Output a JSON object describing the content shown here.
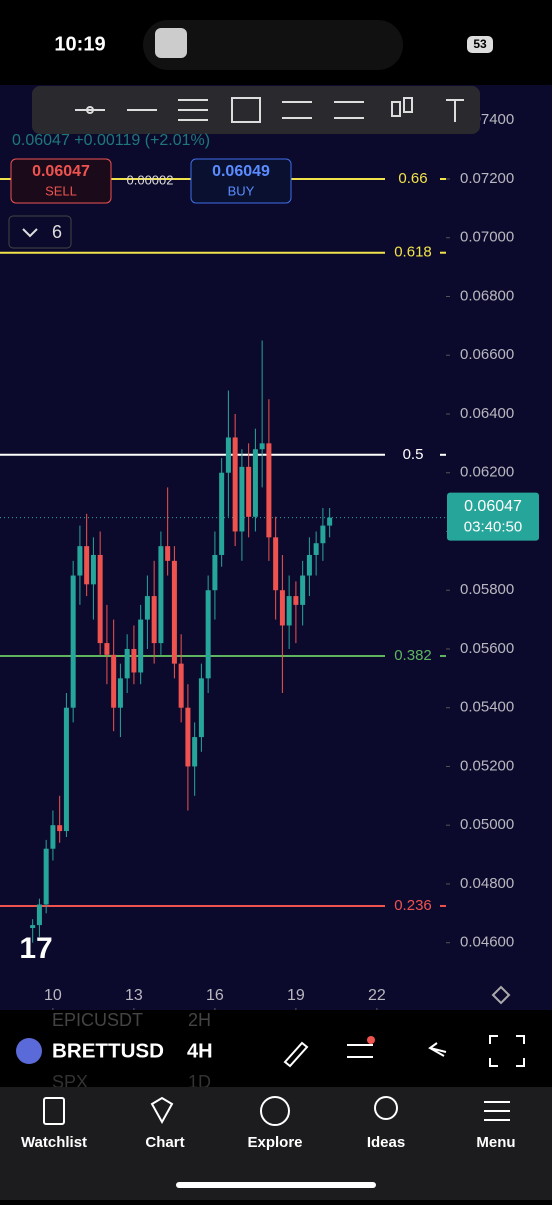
{
  "status_bar": {
    "time": "10:19",
    "battery": "53"
  },
  "quote": {
    "change_line": "0.06047 +0.00119 (+2.01%)",
    "sell_price": "0.06047",
    "sell_label": "SELL",
    "spread": "0.00002",
    "buy_price": "0.06049",
    "buy_label": "BUY",
    "indicator_count": "6"
  },
  "chart_data": {
    "type": "candlestick",
    "up_color": "#26a69a",
    "down_color": "#ef5350",
    "x": [
      9.25,
      9.5,
      9.75,
      10,
      10.25,
      10.5,
      10.75,
      11,
      11.25,
      11.5,
      11.75,
      12,
      12.25,
      12.5,
      12.75,
      13,
      13.25,
      13.5,
      13.75,
      14,
      14.25,
      14.5,
      14.75,
      15,
      15.25,
      15.5,
      15.75,
      16,
      16.25,
      16.5,
      16.75,
      17,
      17.25,
      17.5,
      17.75,
      18,
      18.25,
      18.5,
      18.75,
      19,
      19.25,
      19.5,
      19.75,
      20,
      20.25
    ],
    "open": [
      0.0465,
      0.0466,
      0.0473,
      0.0492,
      0.05,
      0.0498,
      0.054,
      0.0585,
      0.0595,
      0.0582,
      0.0592,
      0.0562,
      0.0558,
      0.054,
      0.055,
      0.056,
      0.0552,
      0.057,
      0.0578,
      0.0562,
      0.0595,
      0.059,
      0.0555,
      0.054,
      0.052,
      0.053,
      0.055,
      0.058,
      0.0592,
      0.062,
      0.0632,
      0.06,
      0.0622,
      0.0605,
      0.0628,
      0.063,
      0.0598,
      0.058,
      0.0568,
      0.0578,
      0.0575,
      0.0585,
      0.0592,
      0.0596,
      0.0602
    ],
    "high": [
      0.0468,
      0.0475,
      0.0495,
      0.0505,
      0.051,
      0.0545,
      0.059,
      0.0602,
      0.0606,
      0.0598,
      0.06,
      0.0575,
      0.057,
      0.0555,
      0.0565,
      0.0568,
      0.0575,
      0.0585,
      0.059,
      0.06,
      0.0615,
      0.0595,
      0.0565,
      0.0548,
      0.0535,
      0.0555,
      0.0585,
      0.06,
      0.0625,
      0.0648,
      0.064,
      0.0628,
      0.063,
      0.0635,
      0.0665,
      0.0645,
      0.0605,
      0.0592,
      0.0585,
      0.0583,
      0.059,
      0.0598,
      0.06,
      0.0608,
      0.0608
    ],
    "low": [
      0.046,
      0.0462,
      0.047,
      0.0488,
      0.0494,
      0.0496,
      0.0535,
      0.0575,
      0.0578,
      0.057,
      0.0558,
      0.0548,
      0.0532,
      0.053,
      0.0545,
      0.0548,
      0.0548,
      0.056,
      0.0555,
      0.0558,
      0.0585,
      0.055,
      0.0535,
      0.0505,
      0.051,
      0.0525,
      0.0545,
      0.057,
      0.0588,
      0.0605,
      0.0595,
      0.059,
      0.0598,
      0.06,
      0.0615,
      0.059,
      0.057,
      0.0545,
      0.056,
      0.0562,
      0.0568,
      0.0578,
      0.0585,
      0.059,
      0.0598
    ],
    "close": [
      0.0466,
      0.0473,
      0.0492,
      0.05,
      0.0498,
      0.054,
      0.0585,
      0.0595,
      0.0582,
      0.0592,
      0.0562,
      0.0558,
      0.054,
      0.055,
      0.056,
      0.0552,
      0.057,
      0.0578,
      0.0562,
      0.0595,
      0.059,
      0.0555,
      0.054,
      0.052,
      0.053,
      0.055,
      0.058,
      0.0592,
      0.062,
      0.0632,
      0.06,
      0.0622,
      0.0605,
      0.0628,
      0.063,
      0.0598,
      0.058,
      0.0568,
      0.0578,
      0.0575,
      0.0585,
      0.0592,
      0.0596,
      0.0602,
      0.06047
    ],
    "xlim": [
      8.04,
      24.56
    ],
    "xticks": [
      10,
      13,
      16,
      19,
      22
    ],
    "ylim": [
      0.0449,
      0.0752
    ],
    "yticks": [
      {
        "value": 0.074,
        "label": "0.07400"
      },
      {
        "value": 0.072,
        "label": "0.07200"
      },
      {
        "value": 0.07,
        "label": "0.07000"
      },
      {
        "value": 0.068,
        "label": "0.06800"
      },
      {
        "value": 0.066,
        "label": "0.06600"
      },
      {
        "value": 0.064,
        "label": "0.06400"
      },
      {
        "value": 0.062,
        "label": "0.06200"
      },
      {
        "value": 0.06,
        "label": "0.06000"
      },
      {
        "value": 0.058,
        "label": "0.05800"
      },
      {
        "value": 0.056,
        "label": "0.05600"
      },
      {
        "value": 0.054,
        "label": "0.05400"
      },
      {
        "value": 0.052,
        "label": "0.05200"
      },
      {
        "value": 0.05,
        "label": "0.05000"
      },
      {
        "value": 0.048,
        "label": "0.04800"
      },
      {
        "value": 0.046,
        "label": "0.04600"
      }
    ],
    "levels": [
      {
        "label": "0.66",
        "value": 0.072,
        "color": "#f2e34a"
      },
      {
        "label": "0.618",
        "value": 0.06949,
        "color": "#f2e34a"
      },
      {
        "label": "0.5",
        "value": 0.06261,
        "color": "#ffffff"
      },
      {
        "label": "0.382",
        "value": 0.05576,
        "color": "#5fb55f"
      },
      {
        "label": "0.236",
        "value": 0.04725,
        "color": "#ef5350"
      }
    ],
    "last_price": {
      "value": 0.06047,
      "label": "0.06047",
      "countdown": "03:40:50"
    }
  },
  "symbol_bar": {
    "symbol": "BRETTUSD",
    "interval": "4H",
    "ghost": [
      "EPICUSDT",
      "2H",
      "SPX",
      "1D"
    ]
  },
  "nav": [
    "Watchlist",
    "Chart",
    "Explore",
    "Ideas",
    "Menu"
  ]
}
